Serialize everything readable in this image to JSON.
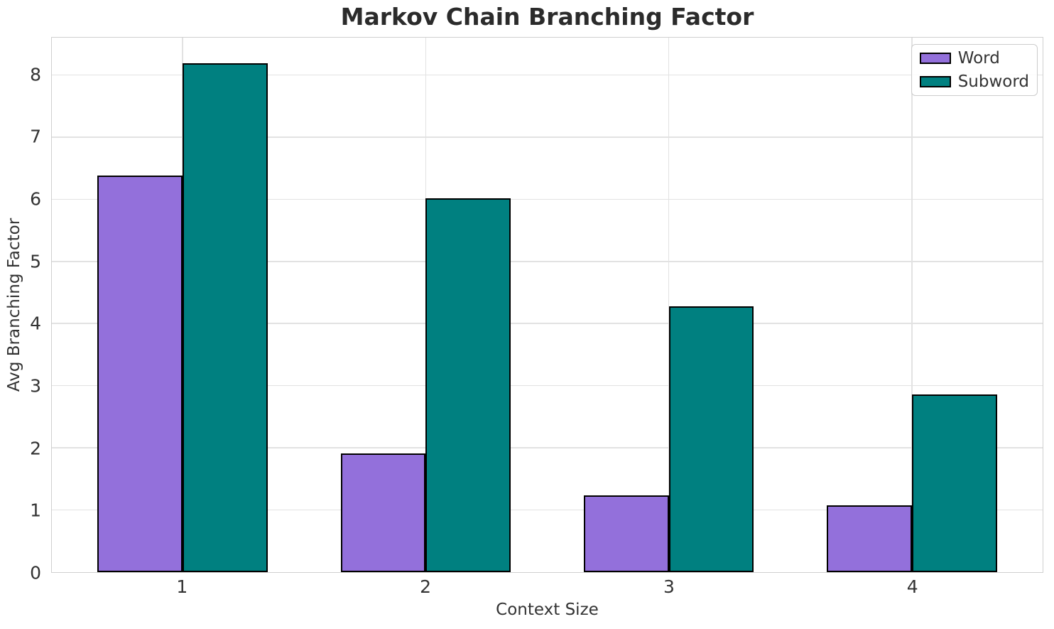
{
  "chart_data": {
    "type": "bar",
    "title": "Markov Chain Branching Factor",
    "xlabel": "Context Size",
    "ylabel": "Avg Branching Factor",
    "categories": [
      "1",
      "2",
      "3",
      "4"
    ],
    "series": [
      {
        "name": "Word",
        "color": "#9370DB",
        "values": [
          6.38,
          1.91,
          1.24,
          1.08
        ]
      },
      {
        "name": "Subword",
        "color": "#008080",
        "values": [
          8.19,
          6.02,
          4.28,
          2.86
        ]
      }
    ],
    "bar_edge_color": "#000000",
    "bar_width": 0.35,
    "xlim": [
      0.4625,
      4.5375
    ],
    "ylim": [
      0,
      8.6
    ],
    "yticks": [
      0,
      1,
      2,
      3,
      4,
      5,
      6,
      7,
      8
    ],
    "grid": true,
    "grid_color": "#e2e2e2",
    "spine_color": "#cfcfcf",
    "legend": {
      "position": "upper right"
    }
  }
}
